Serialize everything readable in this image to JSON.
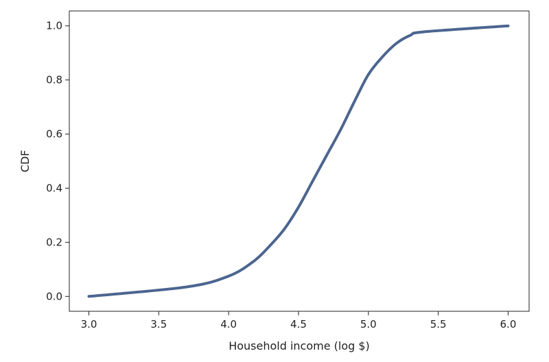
{
  "chart_data": {
    "type": "line",
    "title": "",
    "xlabel": "Household income (log $)",
    "ylabel": "CDF",
    "xlim": [
      2.86,
      6.15
    ],
    "ylim": [
      -0.055,
      1.055
    ],
    "xticks": [
      3.0,
      3.5,
      4.0,
      4.5,
      5.0,
      5.5,
      6.0
    ],
    "xtick_labels": [
      "3.0",
      "3.5",
      "4.0",
      "4.5",
      "5.0",
      "5.5",
      "6.0"
    ],
    "yticks": [
      0.0,
      0.2,
      0.4,
      0.6,
      0.8,
      1.0
    ],
    "ytick_labels": [
      "0.0",
      "0.2",
      "0.4",
      "0.6",
      "0.8",
      "1.0"
    ],
    "grid": false,
    "series": [
      {
        "color": "#4c6590",
        "x": [
          3.0,
          3.7,
          4.0,
          4.18,
          4.3,
          4.4,
          4.5,
          4.6,
          4.7,
          4.8,
          4.9,
          5.0,
          5.1,
          5.2,
          5.3,
          5.4,
          6.0
        ],
        "y": [
          0.0,
          0.035,
          0.075,
          0.13,
          0.19,
          0.25,
          0.33,
          0.425,
          0.52,
          0.615,
          0.72,
          0.82,
          0.885,
          0.935,
          0.965,
          0.978,
          1.0
        ]
      }
    ]
  }
}
